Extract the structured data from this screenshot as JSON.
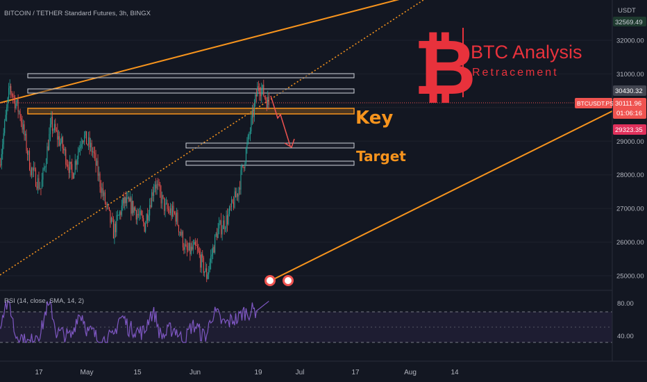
{
  "header": {
    "symbol_title": "BITCOIN / TETHER Standard Futures, 3h, BINGX"
  },
  "logo": {
    "title": "BTC Analysis",
    "subtitle": "Retracement",
    "color": "#e8323c"
  },
  "annotations": {
    "key_label": "Key",
    "target_label": "Target",
    "label_color": "#f7941d"
  },
  "price_scale": {
    "currency": "USDT",
    "labels": [
      "32000.00",
      "31000.00",
      "30000.00",
      "29000.00",
      "28000.00",
      "27000.00",
      "26000.00",
      "25000.00"
    ],
    "top_value": "32569.49",
    "badge_high": "30430.32",
    "ticker_label": "BTCUSDT.PS",
    "last_price": "30111.96",
    "countdown": "01:06:16",
    "badge_low": "29323.35"
  },
  "rsi": {
    "label": "RSI (14, close, SMA, 14, 2)",
    "labels": [
      "80.00",
      "40.00"
    ]
  },
  "time_axis": {
    "labels": [
      "17",
      "May",
      "15",
      "Jun",
      "19",
      "Jul",
      "17",
      "Aug",
      "14"
    ]
  },
  "colors": {
    "background": "#131722",
    "up": "#26a69a",
    "down": "#ef5350",
    "channel": "#f7941d",
    "rsi_line": "#7e57c2",
    "text": "#b2b5be"
  },
  "chart_data": {
    "type": "candlestick",
    "title": "BITCOIN / TETHER Standard Futures, 3h, BINGX",
    "y_axis_unit": "USDT",
    "ylim": [
      24700,
      32600
    ],
    "price_ticks": [
      25000,
      26000,
      27000,
      28000,
      29000,
      30000,
      31000,
      32000
    ],
    "last_price": 30111.96,
    "price_path_approx": [
      {
        "x": "Apr 10",
        "price": 28300
      },
      {
        "x": "Apr 14",
        "price": 30600
      },
      {
        "x": "Apr 17",
        "price": 29800
      },
      {
        "x": "Apr 20",
        "price": 28200
      },
      {
        "x": "Apr 24",
        "price": 27600
      },
      {
        "x": "Apr 26",
        "price": 29500
      },
      {
        "x": "Apr 28",
        "price": 28900
      },
      {
        "x": "May 1",
        "price": 28000
      },
      {
        "x": "May 4",
        "price": 29200
      },
      {
        "x": "May 7",
        "price": 28700
      },
      {
        "x": "May 9",
        "price": 27400
      },
      {
        "x": "May 12",
        "price": 26300
      },
      {
        "x": "May 15",
        "price": 27200
      },
      {
        "x": "May 20",
        "price": 27000
      },
      {
        "x": "May 25",
        "price": 26500
      },
      {
        "x": "May 28",
        "price": 27800
      },
      {
        "x": "Jun 1",
        "price": 27000
      },
      {
        "x": "Jun 5",
        "price": 26800
      },
      {
        "x": "Jun 7",
        "price": 25700
      },
      {
        "x": "Jun 10",
        "price": 25800
      },
      {
        "x": "Jun 15",
        "price": 25000
      },
      {
        "x": "Jun 16",
        "price": 26300
      },
      {
        "x": "Jun 19",
        "price": 26700
      },
      {
        "x": "Jun 20",
        "price": 27500
      },
      {
        "x": "Jun 21",
        "price": 29000
      },
      {
        "x": "Jun 22",
        "price": 30700
      },
      {
        "x": "Jun 22.5",
        "price": 30111.96
      }
    ],
    "zones": [
      {
        "from": 30850,
        "to": 30950,
        "color": "gray"
      },
      {
        "from": 30400,
        "to": 30500,
        "color": "gray"
      },
      {
        "from": 29850,
        "to": 30000,
        "color": "orange",
        "label": "Key"
      },
      {
        "from": 28800,
        "to": 28950,
        "color": "gray",
        "label": "Target"
      },
      {
        "from": 28250,
        "to": 28380,
        "color": "gray"
      }
    ],
    "rsi": {
      "ylim": [
        30,
        90
      ],
      "ticks": [
        80,
        40
      ],
      "levels": [
        70,
        50,
        30
      ],
      "last_value": 84
    }
  }
}
